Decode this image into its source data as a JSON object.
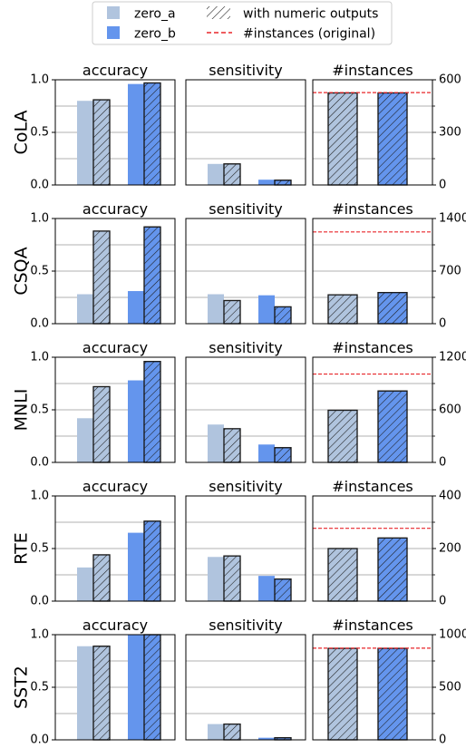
{
  "legend": {
    "position": "top-center",
    "entries": [
      {
        "label": "zero_a",
        "kind": "solid",
        "color": "#b0c4de"
      },
      {
        "label": "zero_b",
        "kind": "solid",
        "color": "#6495ed"
      },
      {
        "label": "with numeric outputs",
        "kind": "hatch"
      },
      {
        "label": "#instances (original)",
        "kind": "dashed-line",
        "color": "#e8262a"
      }
    ]
  },
  "colors": {
    "zero_a": "#b0c4de",
    "zero_b": "#6495ed",
    "reference_line": "#e8262a",
    "grid": "#b0b0b0"
  },
  "chart_data": [
    {
      "type": "bar",
      "dataset": "CoLA",
      "grid": true,
      "panels": [
        {
          "title": "accuracy",
          "ylim": [
            0,
            1
          ],
          "yticks": [
            "0.0",
            "0.5",
            "1.0"
          ],
          "groups": [
            {
              "series": "zero_a",
              "values": [
                0.8,
                0.81
              ]
            },
            {
              "series": "zero_b",
              "values": [
                0.96,
                0.97
              ]
            }
          ]
        },
        {
          "title": "sensitivity",
          "ylim": [
            0,
            1
          ],
          "groups": [
            {
              "series": "zero_a",
              "values": [
                0.2,
                0.2
              ]
            },
            {
              "series": "zero_b",
              "values": [
                0.05,
                0.045
              ]
            }
          ]
        },
        {
          "title": "#instances",
          "ylim": [
            0,
            600
          ],
          "yticks": [
            "0",
            "300",
            "600"
          ],
          "reference": 527,
          "groups": [
            {
              "series": "zero_a",
              "values": [
                null,
                525
              ]
            },
            {
              "series": "zero_b",
              "values": [
                null,
                525
              ]
            }
          ]
        }
      ]
    },
    {
      "type": "bar",
      "dataset": "CSQA",
      "grid": true,
      "panels": [
        {
          "title": "accuracy",
          "ylim": [
            0,
            1
          ],
          "yticks": [
            "0.0",
            "0.5",
            "1.0"
          ],
          "groups": [
            {
              "series": "zero_a",
              "values": [
                0.28,
                0.88
              ]
            },
            {
              "series": "zero_b",
              "values": [
                0.31,
                0.92
              ]
            }
          ]
        },
        {
          "title": "sensitivity",
          "ylim": [
            0,
            1
          ],
          "groups": [
            {
              "series": "zero_a",
              "values": [
                0.28,
                0.22
              ]
            },
            {
              "series": "zero_b",
              "values": [
                0.27,
                0.16
              ]
            }
          ]
        },
        {
          "title": "#instances",
          "ylim": [
            0,
            1400
          ],
          "yticks": [
            "0",
            "700",
            "1400"
          ],
          "reference": 1221,
          "groups": [
            {
              "series": "zero_a",
              "values": [
                null,
                385
              ]
            },
            {
              "series": "zero_b",
              "values": [
                null,
                415
              ]
            }
          ]
        }
      ]
    },
    {
      "type": "bar",
      "dataset": "MNLI",
      "grid": true,
      "panels": [
        {
          "title": "accuracy",
          "ylim": [
            0,
            1
          ],
          "yticks": [
            "0.0",
            "0.5",
            "1.0"
          ],
          "groups": [
            {
              "series": "zero_a",
              "values": [
                0.42,
                0.72
              ]
            },
            {
              "series": "zero_b",
              "values": [
                0.78,
                0.96
              ]
            }
          ]
        },
        {
          "title": "sensitivity",
          "ylim": [
            0,
            1
          ],
          "groups": [
            {
              "series": "zero_a",
              "values": [
                0.36,
                0.32
              ]
            },
            {
              "series": "zero_b",
              "values": [
                0.17,
                0.14
              ]
            }
          ]
        },
        {
          "title": "#instances",
          "ylim": [
            0,
            1200
          ],
          "yticks": [
            "0",
            "600",
            "1200"
          ],
          "reference": 1008,
          "groups": [
            {
              "series": "zero_a",
              "values": [
                null,
                595
              ]
            },
            {
              "series": "zero_b",
              "values": [
                null,
                815
              ]
            }
          ]
        }
      ]
    },
    {
      "type": "bar",
      "dataset": "RTE",
      "grid": true,
      "panels": [
        {
          "title": "accuracy",
          "ylim": [
            0,
            1
          ],
          "yticks": [
            "0.0",
            "0.5",
            "1.0"
          ],
          "groups": [
            {
              "series": "zero_a",
              "values": [
                0.32,
                0.44
              ]
            },
            {
              "series": "zero_b",
              "values": [
                0.65,
                0.76
              ]
            }
          ]
        },
        {
          "title": "sensitivity",
          "ylim": [
            0,
            1
          ],
          "groups": [
            {
              "series": "zero_a",
              "values": [
                0.42,
                0.43
              ]
            },
            {
              "series": "zero_b",
              "values": [
                0.24,
                0.21
              ]
            }
          ]
        },
        {
          "title": "#instances",
          "ylim": [
            0,
            400
          ],
          "yticks": [
            "0",
            "200",
            "400"
          ],
          "reference": 277,
          "groups": [
            {
              "series": "zero_a",
              "values": [
                null,
                200
              ]
            },
            {
              "series": "zero_b",
              "values": [
                null,
                240
              ]
            }
          ]
        }
      ]
    },
    {
      "type": "bar",
      "dataset": "SST2",
      "grid": true,
      "panels": [
        {
          "title": "accuracy",
          "ylim": [
            0,
            1
          ],
          "yticks": [
            "0.0",
            "0.5",
            "1.0"
          ],
          "groups": [
            {
              "series": "zero_a",
              "values": [
                0.89,
                0.89
              ]
            },
            {
              "series": "zero_b",
              "values": [
                1.0,
                1.0
              ]
            }
          ]
        },
        {
          "title": "sensitivity",
          "ylim": [
            0,
            1
          ],
          "groups": [
            {
              "series": "zero_a",
              "values": [
                0.15,
                0.15
              ]
            },
            {
              "series": "zero_b",
              "values": [
                0.02,
                0.02
              ]
            }
          ]
        },
        {
          "title": "#instances",
          "ylim": [
            0,
            1000
          ],
          "yticks": [
            "0",
            "500",
            "1000"
          ],
          "reference": 872,
          "groups": [
            {
              "series": "zero_a",
              "values": [
                null,
                870
              ]
            },
            {
              "series": "zero_b",
              "values": [
                null,
                870
              ]
            }
          ]
        }
      ]
    }
  ]
}
